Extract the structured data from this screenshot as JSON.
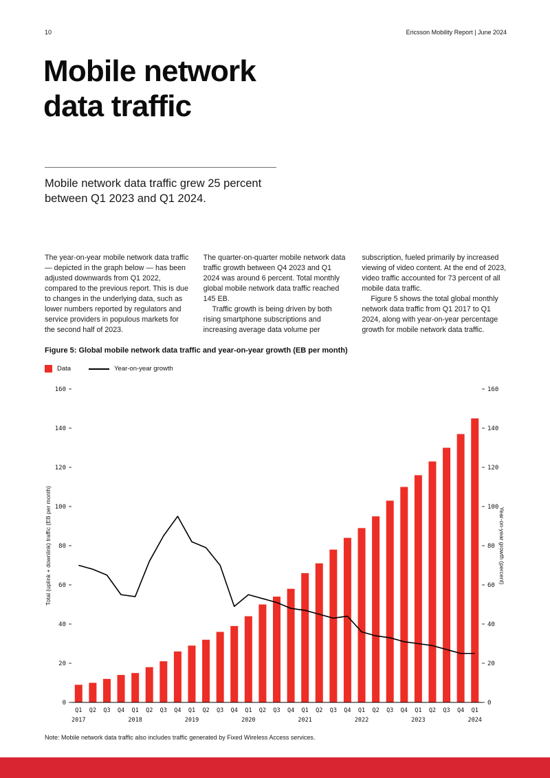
{
  "page": {
    "number": "10",
    "header_right": "Ericsson Mobility Report  |  June 2024",
    "footer_color": "#d92531"
  },
  "title": {
    "line1": "Mobile network",
    "line2": "data traffic"
  },
  "subtitle": "Mobile network data traffic grew 25 percent between Q1 2023 and Q1 2024.",
  "columns": [
    {
      "paragraphs": [
        "The year-on-year mobile network data traffic — depicted in the graph below — has been adjusted downwards from Q1 2022, compared to the previous report. This is due to changes in the underlying data, such as lower numbers reported by regulators and service providers in populous markets for the second half of 2023."
      ]
    },
    {
      "paragraphs": [
        "The quarter-on-quarter mobile network data traffic growth between Q4 2023 and Q1 2024 was around 6 percent. Total monthly global mobile network data traffic reached 145 EB.",
        "Traffic growth is being driven by both rising smartphone subscriptions and increasing average data volume per"
      ]
    },
    {
      "paragraphs": [
        "subscription, fueled primarily by increased viewing of video content. At the end of 2023, video traffic accounted for 73 percent of all mobile data traffic.",
        "Figure 5 shows the total global monthly network data traffic from Q1 2017 to Q1 2024, along with year-on-year percentage growth for mobile network data traffic."
      ]
    }
  ],
  "figure": {
    "caption": "Figure 5: Global mobile network data traffic and year-on-year growth (EB per month)",
    "note": "Note: Mobile network data traffic also includes traffic generated by Fixed Wireless Access services."
  },
  "chart_data": {
    "type": "bar",
    "categories": [
      "Q1",
      "Q2",
      "Q3",
      "Q4",
      "Q1",
      "Q2",
      "Q3",
      "Q4",
      "Q1",
      "Q2",
      "Q3",
      "Q4",
      "Q1",
      "Q2",
      "Q3",
      "Q4",
      "Q1",
      "Q2",
      "Q3",
      "Q4",
      "Q1",
      "Q2",
      "Q3",
      "Q4",
      "Q1",
      "Q2",
      "Q3",
      "Q4",
      "Q1"
    ],
    "years": [
      {
        "label": "2017",
        "index": 0
      },
      {
        "label": "2018",
        "index": 4
      },
      {
        "label": "2019",
        "index": 8
      },
      {
        "label": "2020",
        "index": 12
      },
      {
        "label": "2021",
        "index": 16
      },
      {
        "label": "2022",
        "index": 20
      },
      {
        "label": "2023",
        "index": 24
      },
      {
        "label": "2024",
        "index": 28
      }
    ],
    "series": [
      {
        "name": "Data",
        "type": "bar",
        "color": "#ed2e26",
        "values": [
          9,
          10,
          12,
          14,
          15,
          18,
          21,
          26,
          29,
          32,
          36,
          39,
          44,
          50,
          54,
          58,
          66,
          71,
          78,
          84,
          89,
          95,
          103,
          110,
          116,
          123,
          130,
          137,
          145
        ]
      },
      {
        "name": "Year-on-year growth",
        "type": "line",
        "color": "#000000",
        "values": [
          70,
          68,
          65,
          55,
          54,
          72,
          85,
          95,
          82,
          79,
          70,
          49,
          55,
          53,
          51,
          48,
          47,
          45,
          43,
          44,
          36,
          34,
          33,
          31,
          30,
          29,
          27,
          25,
          25
        ]
      }
    ],
    "ylabel_left": "Total (uplink + downlink) traffic (EB per month)",
    "ylabel_right": "Year-on-year growth (percent)",
    "ylim": [
      0,
      160
    ],
    "yticks": [
      0,
      20,
      40,
      60,
      80,
      100,
      120,
      140,
      160
    ],
    "grid": "off",
    "legend_position": "top-left"
  }
}
